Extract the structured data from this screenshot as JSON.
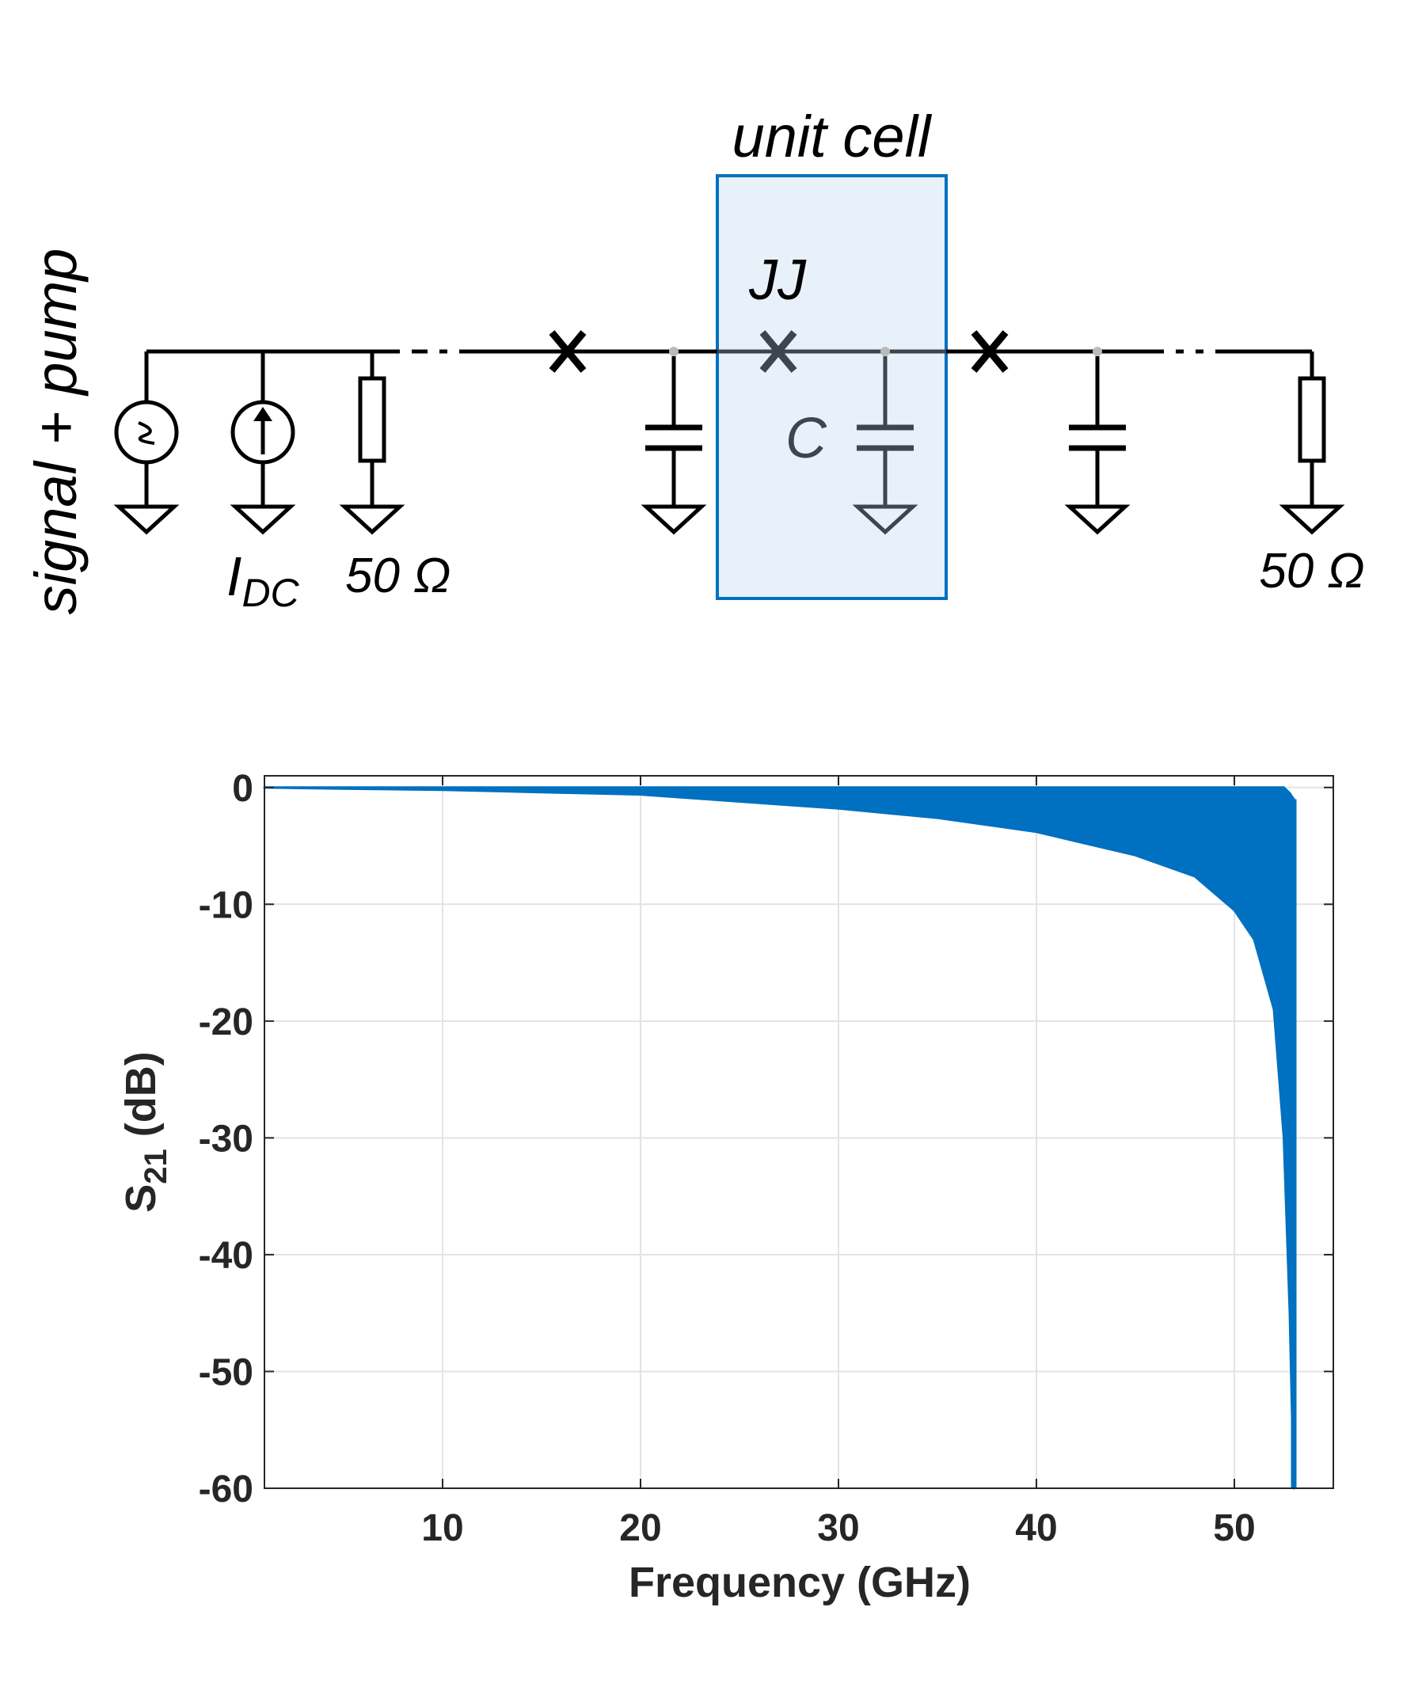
{
  "diagram": {
    "side_label": "signal + pump",
    "unit_cell_label": "unit cell",
    "jj_label": "JJ",
    "capacitor_label": "C",
    "idc_label_main": "I",
    "idc_label_sub": "DC",
    "load_left_label": "50 Ω",
    "load_right_label": "50 Ω",
    "colors": {
      "wire": "#000000",
      "unit_cell_fill": "#e8f0fa",
      "unit_cell_border": "#0070c0",
      "unit_cell_elements": "#3d4550"
    }
  },
  "chart_data": {
    "type": "area",
    "title": "",
    "xlabel": "Frequency (GHz)",
    "ylabel_main": "S",
    "ylabel_sub": "21",
    "ylabel_unit": " (dB)",
    "xlim": [
      1,
      55
    ],
    "ylim": [
      -60,
      1
    ],
    "xticks": [
      10,
      20,
      30,
      40,
      50
    ],
    "yticks": [
      0,
      -10,
      -20,
      -30,
      -40,
      -50,
      -60
    ],
    "grid": true,
    "color": "#0070c0",
    "series": [
      {
        "x": [
          1,
          5,
          10,
          15,
          20,
          25,
          30,
          35,
          40,
          45,
          48,
          50,
          51,
          52,
          52.5,
          52.8,
          53.0
        ],
        "upper": [
          0,
          0,
          0,
          0,
          0,
          0,
          0,
          0,
          0,
          0,
          0,
          0,
          0,
          0,
          0,
          -0.5,
          -1
        ],
        "lower": [
          0,
          -0.1,
          -0.2,
          -0.4,
          -0.6,
          -1.2,
          -1.8,
          -2.6,
          -3.8,
          -5.8,
          -7.6,
          -10.5,
          -13,
          -19,
          -30,
          -45,
          -60
        ]
      }
    ]
  }
}
